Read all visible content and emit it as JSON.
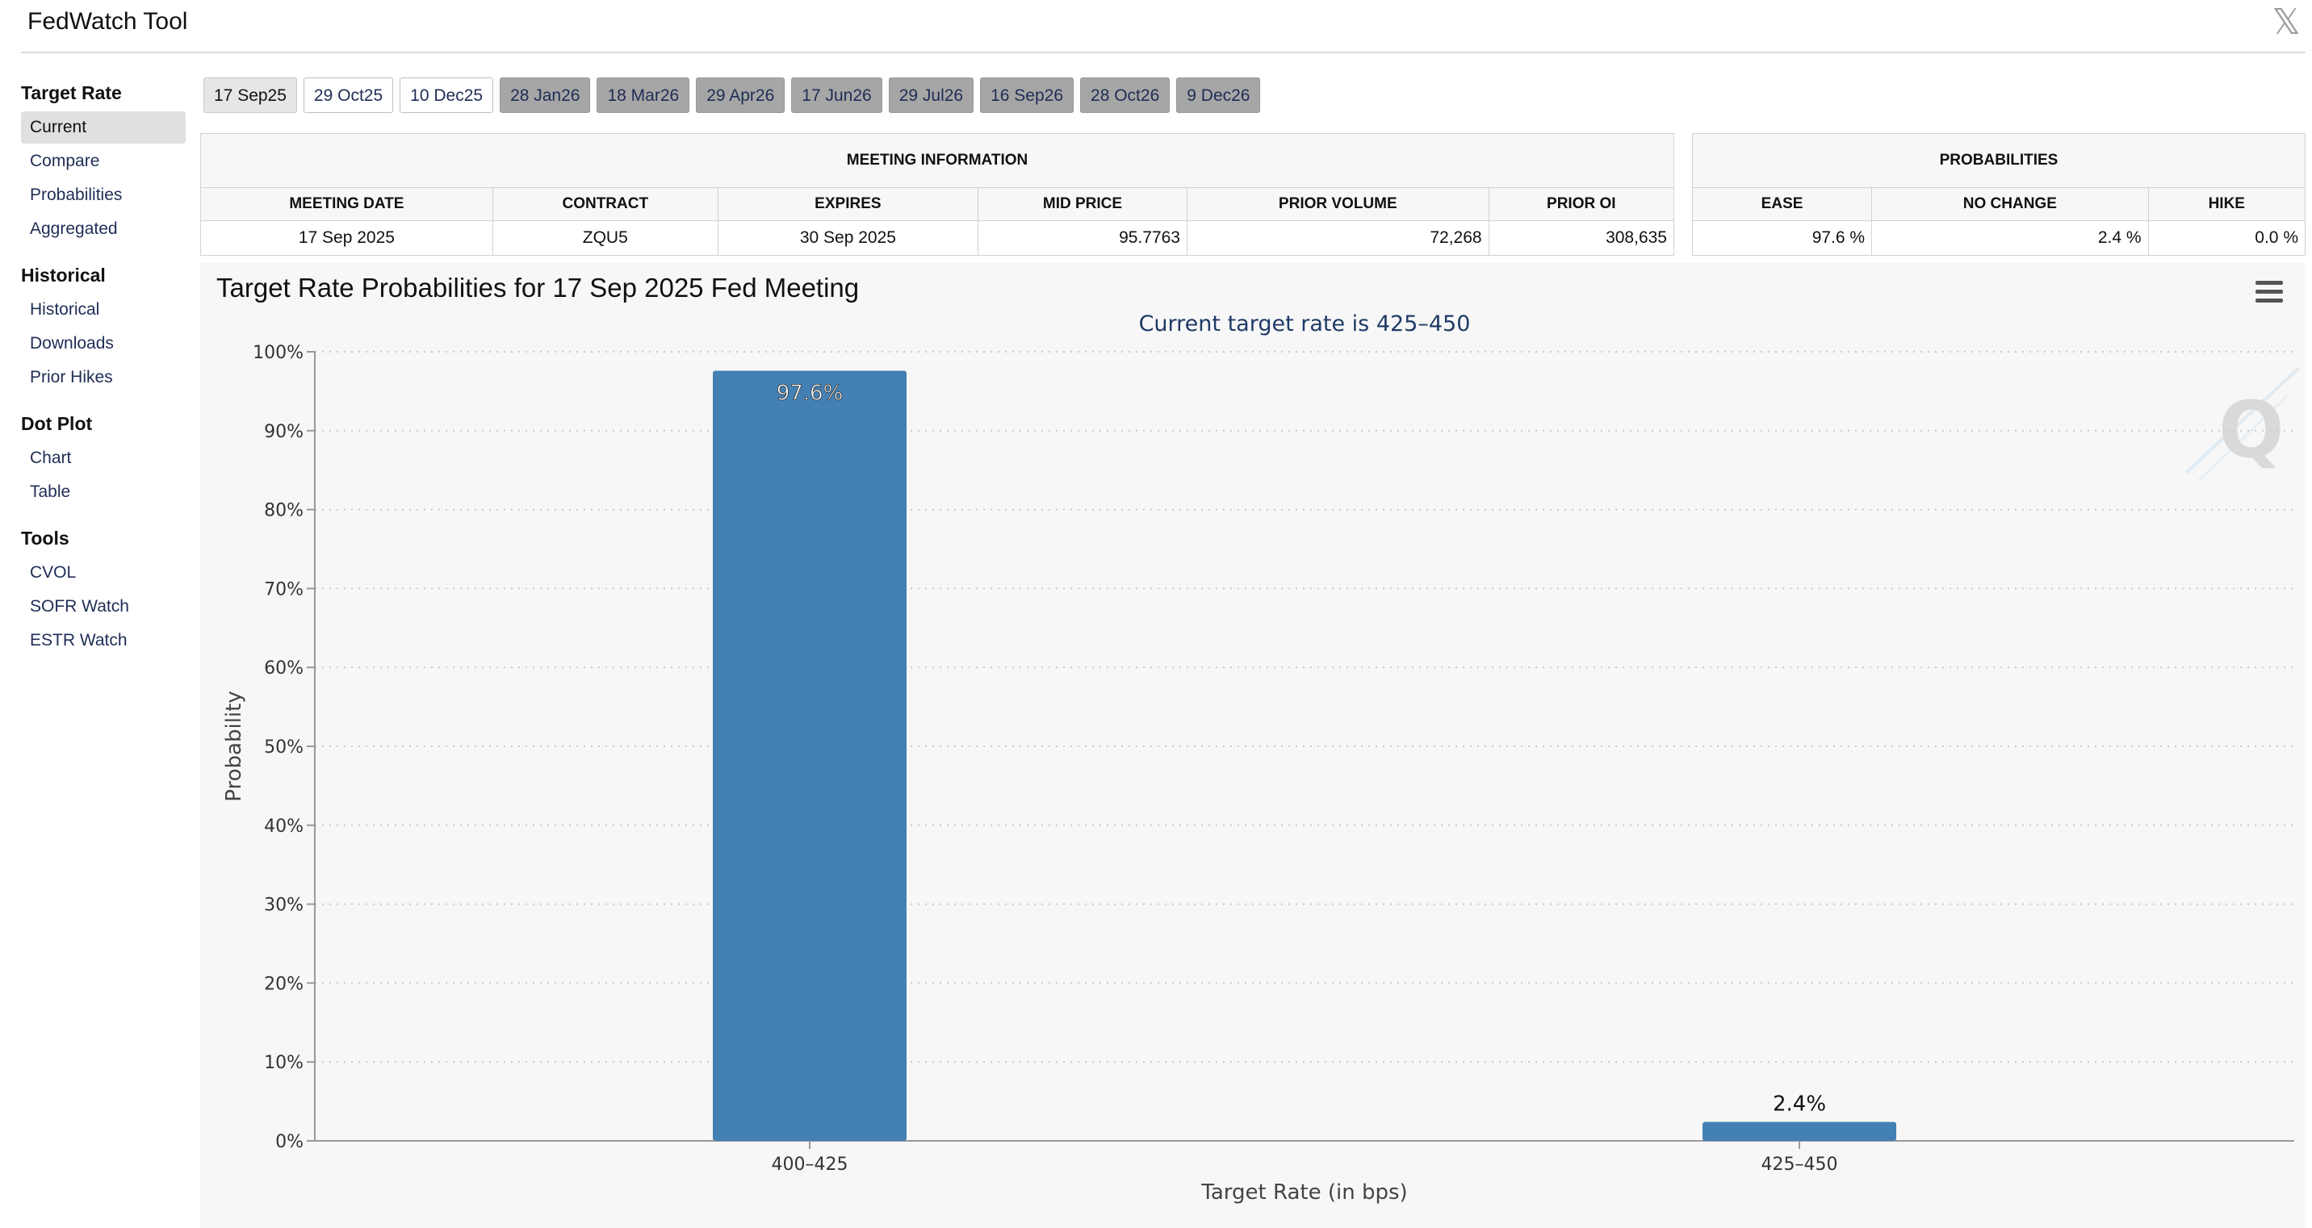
{
  "app": {
    "title": "FedWatch Tool",
    "close_glyph": "𝕏"
  },
  "sidebar": {
    "groups": [
      {
        "heading": "Target Rate",
        "items": [
          "Current",
          "Compare",
          "Probabilities",
          "Aggregated"
        ]
      },
      {
        "heading": "Historical",
        "items": [
          "Historical",
          "Downloads",
          "Prior Hikes"
        ]
      },
      {
        "heading": "Dot Plot",
        "items": [
          "Chart",
          "Table"
        ]
      },
      {
        "heading": "Tools",
        "items": [
          "CVOL",
          "SOFR Watch",
          "ESTR Watch"
        ]
      }
    ],
    "active_item": "Current"
  },
  "tabs": [
    {
      "label": "17 Sep25",
      "state": "selected"
    },
    {
      "label": "29 Oct25",
      "state": "normal"
    },
    {
      "label": "10 Dec25",
      "state": "normal"
    },
    {
      "label": "28 Jan26",
      "state": "dim"
    },
    {
      "label": "18 Mar26",
      "state": "dim"
    },
    {
      "label": "29 Apr26",
      "state": "dim"
    },
    {
      "label": "17 Jun26",
      "state": "dim"
    },
    {
      "label": "29 Jul26",
      "state": "dim"
    },
    {
      "label": "16 Sep26",
      "state": "dim"
    },
    {
      "label": "28 Oct26",
      "state": "dim"
    },
    {
      "label": "9 Dec26",
      "state": "dim"
    }
  ],
  "meeting_info": {
    "heading": "MEETING INFORMATION",
    "columns": [
      "MEETING DATE",
      "CONTRACT",
      "EXPIRES",
      "MID PRICE",
      "PRIOR VOLUME",
      "PRIOR OI"
    ],
    "row": [
      "17 Sep 2025",
      "ZQU5",
      "30 Sep 2025",
      "95.7763",
      "72,268",
      "308,635"
    ]
  },
  "probabilities": {
    "heading": "PROBABILITIES",
    "columns": [
      "EASE",
      "NO CHANGE",
      "HIKE"
    ],
    "row": [
      "97.6 %",
      "2.4 %",
      "0.0 %"
    ]
  },
  "chart": {
    "title": "Target Rate Probabilities for 17 Sep 2025 Fed Meeting",
    "menu_icon": "hamburger-menu-icon",
    "watermark_logo": "Q"
  },
  "chart_data": {
    "type": "bar",
    "title": "Target Rate Probabilities for 17 Sep 2025 Fed Meeting",
    "subtitle": "Current target rate is 425–450",
    "categories": [
      "400–425",
      "425–450"
    ],
    "values": [
      97.6,
      2.4
    ],
    "data_labels": [
      "97.6%",
      "2.4%"
    ],
    "xlabel": "Target Rate (in bps)",
    "ylabel": "Probability",
    "ylim": [
      0,
      100
    ],
    "yticks": [
      "0%",
      "10%",
      "20%",
      "30%",
      "40%",
      "50%",
      "60%",
      "70%",
      "80%",
      "90%",
      "100%"
    ],
    "grid": true,
    "bar_color": "#4380b4"
  }
}
